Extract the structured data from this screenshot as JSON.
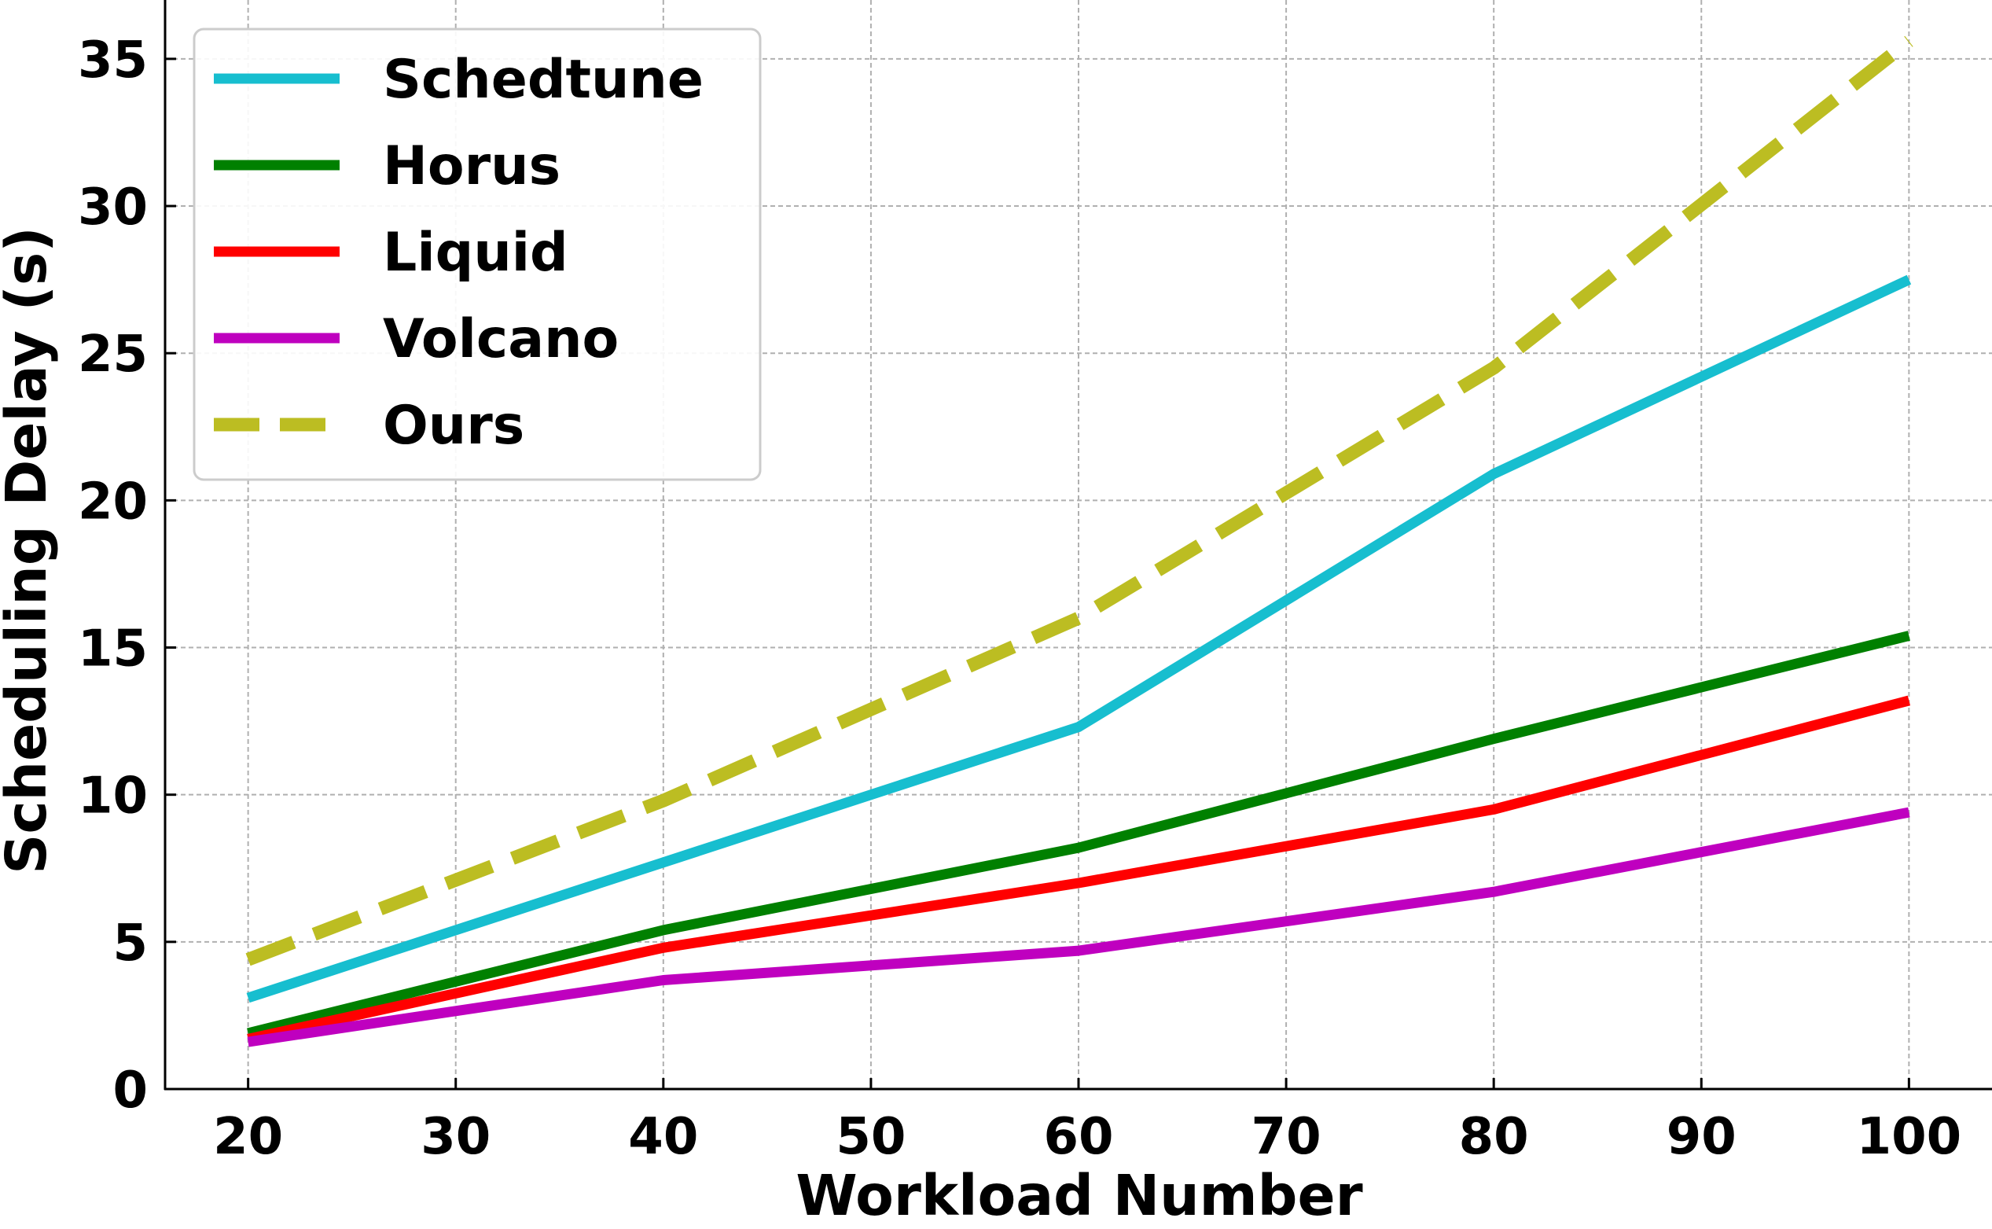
{
  "chart_data": {
    "type": "line",
    "title": "",
    "xlabel": "Workload Number",
    "ylabel": "Scheduling Delay (s)",
    "x": [
      20,
      40,
      60,
      80,
      100
    ],
    "xlim": [
      16,
      104
    ],
    "ylim": [
      0,
      37
    ],
    "xticks": [
      "20",
      "30",
      "40",
      "50",
      "60",
      "70",
      "80",
      "90",
      "100"
    ],
    "xtick_values": [
      20,
      30,
      40,
      50,
      60,
      70,
      80,
      90,
      100
    ],
    "yticks": [
      "0",
      "5",
      "10",
      "15",
      "20",
      "25",
      "30",
      "35"
    ],
    "ytick_values": [
      0,
      5,
      10,
      15,
      20,
      25,
      30,
      35
    ],
    "grid": true,
    "legend_position": "top-left",
    "series": [
      {
        "name": "Schedtune",
        "values": [
          3.1,
          7.7,
          12.3,
          20.9,
          27.5
        ],
        "color": "#17becf",
        "dashed": false
      },
      {
        "name": "Horus",
        "values": [
          1.9,
          5.4,
          8.2,
          11.9,
          15.4
        ],
        "color": "#008000",
        "dashed": false
      },
      {
        "name": "Liquid",
        "values": [
          1.7,
          4.8,
          7.0,
          9.5,
          13.2
        ],
        "color": "#ff0000",
        "dashed": false
      },
      {
        "name": "Volcano",
        "values": [
          1.6,
          3.7,
          4.7,
          6.7,
          9.4
        ],
        "color": "#bf00bf",
        "dashed": false
      },
      {
        "name": "Ours",
        "values": [
          4.4,
          9.8,
          16.0,
          24.5,
          35.6
        ],
        "color": "#bcbd22",
        "dashed": true
      }
    ]
  }
}
